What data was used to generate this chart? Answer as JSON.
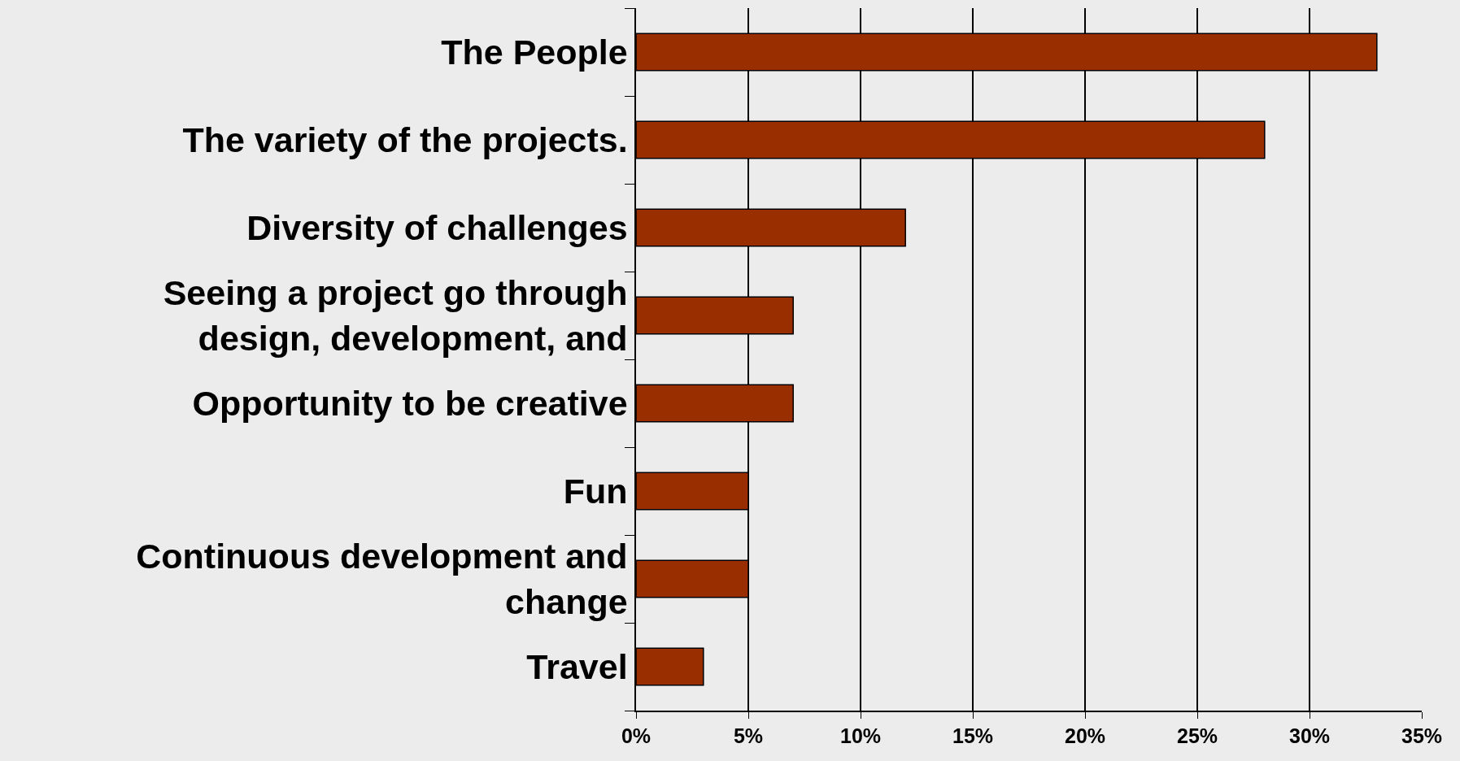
{
  "chart_data": {
    "type": "bar",
    "orientation": "horizontal",
    "categories": [
      "The People",
      "The variety of the projects.",
      "Diversity of challenges",
      "Seeing a project go through\ndesign, development, and",
      "Opportunity to be creative",
      "Fun",
      "Continuous development and\nchange",
      "Travel"
    ],
    "values": [
      33,
      28,
      12,
      7,
      7,
      5,
      5,
      3
    ],
    "color": "#992e00",
    "xlim": [
      0,
      35
    ],
    "xticks": [
      {
        "value": 0,
        "label": "0%"
      },
      {
        "value": 5,
        "label": "5%"
      },
      {
        "value": 10,
        "label": "10%"
      },
      {
        "value": 15,
        "label": "15%"
      },
      {
        "value": 20,
        "label": "20%"
      },
      {
        "value": 25,
        "label": "25%"
      },
      {
        "value": 30,
        "label": "30%"
      },
      {
        "value": 35,
        "label": "35%"
      }
    ],
    "grid": "x"
  }
}
